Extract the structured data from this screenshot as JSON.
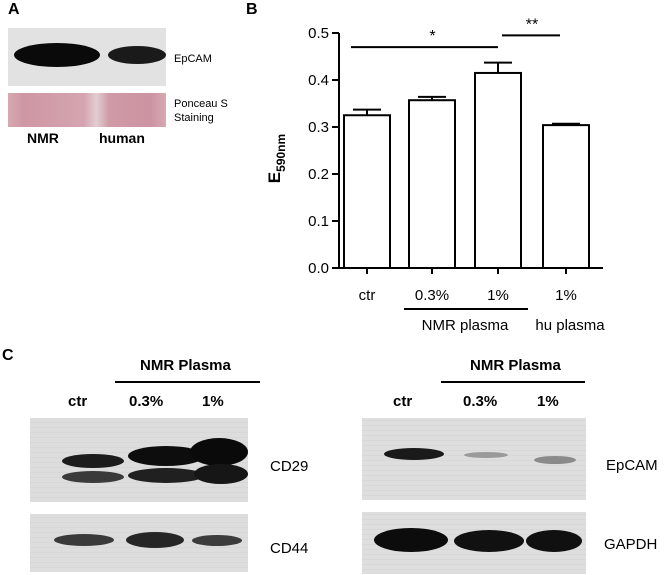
{
  "panel_a": {
    "letter": "A",
    "epcam_label": "EpCAM",
    "ponceau_label_line1": "Ponceau S",
    "ponceau_label_line2": "Staining",
    "lane_nmr": "NMR",
    "lane_human": "human"
  },
  "panel_b": {
    "letter": "B"
  },
  "chart_data": {
    "type": "bar",
    "categories": [
      "ctr",
      "0.3%",
      "1%",
      "1%"
    ],
    "values": [
      0.325,
      0.357,
      0.415,
      0.304
    ],
    "errors": [
      0.012,
      0.007,
      0.022,
      0.003
    ],
    "ylim": [
      0.0,
      0.5
    ],
    "yticks": [
      "0.0",
      "0.1",
      "0.2",
      "0.3",
      "0.4",
      "0.5"
    ],
    "ylabel_main": "E",
    "ylabel_sub": "590nm",
    "group_labels": [
      "NMR plasma",
      "hu plasma"
    ],
    "significance": [
      {
        "from": 0,
        "to": 2,
        "label": "*"
      },
      {
        "from": 2,
        "to": 3,
        "label": "**"
      }
    ]
  },
  "panel_c": {
    "letter": "C",
    "left": {
      "group_label": "NMR Plasma",
      "lanes": [
        "ctr",
        "0.3%",
        "1%"
      ],
      "blot1_label": "CD29",
      "blot2_label": "CD44"
    },
    "right": {
      "group_label": "NMR Plasma",
      "lanes": [
        "ctr",
        "0.3%",
        "1%"
      ],
      "blot1_label": "EpCAM",
      "blot2_label": "GAPDH"
    }
  }
}
